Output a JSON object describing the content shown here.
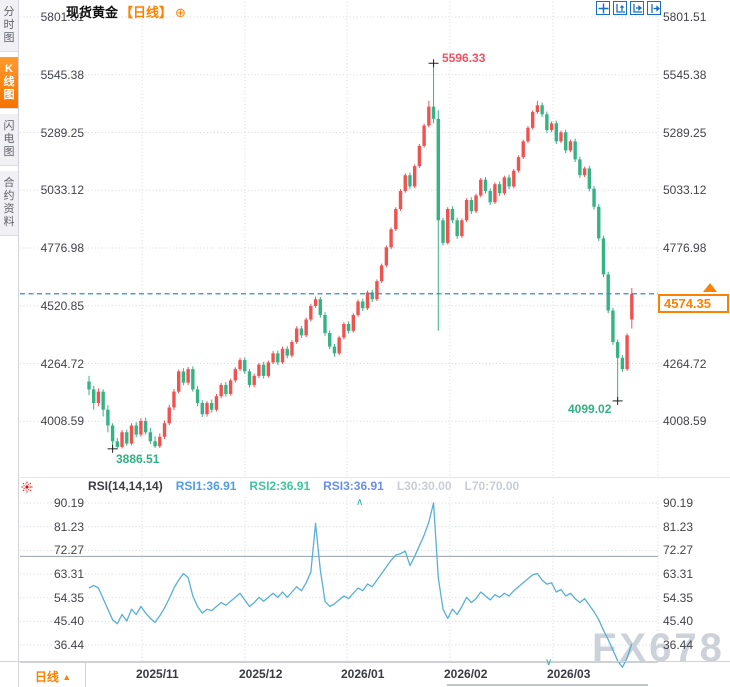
{
  "header": {
    "title": "现货黄金",
    "period_tag": "【日线】",
    "add_icon": "⊕"
  },
  "toolbar": {
    "icons": [
      "crosshair-icon",
      "axis-zoom-up-icon",
      "axis-play-icon",
      "shift-right-icon"
    ]
  },
  "sidebar": {
    "tabs": [
      {
        "label": "分时图",
        "active": false
      },
      {
        "label": "K线图",
        "active": true
      },
      {
        "label": "闪电图",
        "active": false
      },
      {
        "label": "合约资料",
        "active": false
      }
    ]
  },
  "annotations": {
    "high": "5596.33",
    "low1": "3886.51",
    "low2": "4099.02",
    "current_price": "4574.35"
  },
  "rsi_header": {
    "items": [
      {
        "text": "RSI(14,14,14)",
        "color": "#3c3c46"
      },
      {
        "text": "RSI1:36.91",
        "color": "#4f9ce8"
      },
      {
        "text": "RSI2:36.91",
        "color": "#3fc6a0"
      },
      {
        "text": "RSI3:36.91",
        "color": "#6a8fe8"
      },
      {
        "text": "L30:30.00",
        "color": "#c9cdd6"
      },
      {
        "text": "L70:70.00",
        "color": "#c9cdd6"
      }
    ]
  },
  "bottom_bar": {
    "period_label": "日线",
    "arrow": "▲"
  },
  "watermark": "FX678",
  "colors": {
    "accent_orange": "#fb8200",
    "up_red": "#ef5350",
    "down_green": "#35b384",
    "annotation_red": "#ef5364",
    "annotation_green": "#2fb184",
    "price_line_blue": "#2e86e8",
    "rsi_line": "#58b0d8",
    "toolbar_blue": "#1a6fc4",
    "grid": "#d4d8df",
    "level_line": "#9aa0a8",
    "watermark_gray": "#cdd2da"
  },
  "chart_data": {
    "type": "candlestick+rsi",
    "instrument": "现货黄金",
    "period": "日线",
    "x_labels": [
      "2025/11",
      "2025/12",
      "2026/01",
      "2026/02",
      "2026/03"
    ],
    "price_panel": {
      "type": "candlestick",
      "ylim": [
        3886.51,
        5801.51
      ],
      "y_ticks": [
        {
          "v": 5801.51,
          "t": "5801.51"
        },
        {
          "v": 5545.38,
          "t": "5545.38"
        },
        {
          "v": 5289.25,
          "t": "5289.25"
        },
        {
          "v": 5033.12,
          "t": "5033.12"
        },
        {
          "v": 4776.98,
          "t": "4776.98"
        },
        {
          "v": 4520.85,
          "t": "4520.85"
        },
        {
          "v": 4264.72,
          "t": "4264.72"
        },
        {
          "v": 4008.59,
          "t": "4008.59"
        }
      ],
      "last_price": 4574.35,
      "markers": [
        {
          "type": "high",
          "value": 5596.33,
          "candle": 73,
          "label": "5596.33",
          "label_pos": "top-right"
        },
        {
          "type": "low",
          "value": 3886.51,
          "candle": 5,
          "label": "3886.51",
          "label_pos": "bottom-right"
        },
        {
          "type": "low",
          "value": 4099.02,
          "candle": 112,
          "label": "4099.02",
          "label_pos": "left"
        }
      ],
      "ohlc": [
        [
          4185,
          4210,
          4125,
          4150
        ],
        [
          4150,
          4165,
          4060,
          4090
        ],
        [
          4090,
          4155,
          4075,
          4140
        ],
        [
          4140,
          4150,
          4030,
          4060
        ],
        [
          4060,
          4080,
          3960,
          3990
        ],
        [
          3990,
          4000,
          3887,
          3920
        ],
        [
          3920,
          3935,
          3889,
          3895
        ],
        [
          3895,
          3970,
          3888,
          3960
        ],
        [
          3960,
          3972,
          3900,
          3910
        ],
        [
          3910,
          4000,
          3902,
          3990
        ],
        [
          3990,
          4005,
          3938,
          3950
        ],
        [
          3950,
          4022,
          3940,
          4010
        ],
        [
          4010,
          4025,
          3950,
          3960
        ],
        [
          3960,
          3980,
          3908,
          3920
        ],
        [
          3920,
          3942,
          3890,
          3898
        ],
        [
          3898,
          3955,
          3890,
          3940
        ],
        [
          3940,
          4012,
          3930,
          4000
        ],
        [
          4000,
          4082,
          3992,
          4070
        ],
        [
          4070,
          4152,
          4058,
          4140
        ],
        [
          4140,
          4238,
          4132,
          4230
        ],
        [
          4230,
          4244,
          4168,
          4180
        ],
        [
          4180,
          4250,
          4170,
          4240
        ],
        [
          4240,
          4252,
          4140,
          4150
        ],
        [
          4150,
          4165,
          4075,
          4090
        ],
        [
          4090,
          4102,
          4028,
          4040
        ],
        [
          4040,
          4098,
          4030,
          4090
        ],
        [
          4090,
          4105,
          4048,
          4060
        ],
        [
          4060,
          4130,
          4052,
          4120
        ],
        [
          4120,
          4178,
          4110,
          4170
        ],
        [
          4170,
          4182,
          4118,
          4130
        ],
        [
          4130,
          4198,
          4122,
          4190
        ],
        [
          4190,
          4248,
          4180,
          4240
        ],
        [
          4240,
          4290,
          4232,
          4280
        ],
        [
          4280,
          4292,
          4218,
          4230
        ],
        [
          4230,
          4240,
          4158,
          4170
        ],
        [
          4170,
          4220,
          4160,
          4210
        ],
        [
          4210,
          4268,
          4200,
          4260
        ],
        [
          4260,
          4272,
          4198,
          4210
        ],
        [
          4210,
          4278,
          4202,
          4270
        ],
        [
          4270,
          4320,
          4262,
          4310
        ],
        [
          4310,
          4322,
          4258,
          4270
        ],
        [
          4270,
          4340,
          4262,
          4330
        ],
        [
          4330,
          4342,
          4288,
          4300
        ],
        [
          4300,
          4368,
          4292,
          4360
        ],
        [
          4360,
          4430,
          4352,
          4420
        ],
        [
          4420,
          4432,
          4378,
          4390
        ],
        [
          4390,
          4468,
          4382,
          4460
        ],
        [
          4460,
          4530,
          4452,
          4520
        ],
        [
          4520,
          4562,
          4512,
          4550
        ],
        [
          4550,
          4560,
          4468,
          4480
        ],
        [
          4480,
          4492,
          4388,
          4400
        ],
        [
          4400,
          4412,
          4328,
          4340
        ],
        [
          4340,
          4352,
          4295,
          4310
        ],
        [
          4310,
          4388,
          4302,
          4380
        ],
        [
          4380,
          4448,
          4372,
          4440
        ],
        [
          4440,
          4452,
          4398,
          4410
        ],
        [
          4410,
          4488,
          4402,
          4480
        ],
        [
          4480,
          4548,
          4472,
          4540
        ],
        [
          4540,
          4552,
          4498,
          4510
        ],
        [
          4510,
          4588,
          4502,
          4580
        ],
        [
          4580,
          4592,
          4538,
          4550
        ],
        [
          4550,
          4638,
          4542,
          4630
        ],
        [
          4630,
          4708,
          4622,
          4700
        ],
        [
          4700,
          4788,
          4692,
          4780
        ],
        [
          4780,
          4868,
          4772,
          4860
        ],
        [
          4860,
          4958,
          4852,
          4950
        ],
        [
          4950,
          5038,
          4942,
          5030
        ],
        [
          5030,
          5108,
          5022,
          5100
        ],
        [
          5100,
          5112,
          5038,
          5050
        ],
        [
          5050,
          5148,
          5042,
          5140
        ],
        [
          5140,
          5238,
          5132,
          5230
        ],
        [
          5230,
          5328,
          5222,
          5320
        ],
        [
          5320,
          5430,
          5312,
          5404
        ],
        [
          5404,
          5596,
          5330,
          5350
        ],
        [
          5350,
          5388,
          4410,
          4900
        ],
        [
          4900,
          4912,
          4788,
          4800
        ],
        [
          4800,
          4958,
          4792,
          4950
        ],
        [
          4950,
          4962,
          4888,
          4900
        ],
        [
          4900,
          4912,
          4818,
          4830
        ],
        [
          4830,
          4908,
          4822,
          4900
        ],
        [
          4900,
          4998,
          4892,
          4990
        ],
        [
          4990,
          5002,
          4928,
          4940
        ],
        [
          4940,
          5018,
          4932,
          5010
        ],
        [
          5010,
          5088,
          5002,
          5080
        ],
        [
          5080,
          5092,
          5018,
          5030
        ],
        [
          5030,
          5042,
          4968,
          4980
        ],
        [
          4980,
          5068,
          4972,
          5060
        ],
        [
          5060,
          5072,
          5008,
          5020
        ],
        [
          5020,
          5098,
          5012,
          5090
        ],
        [
          5090,
          5102,
          5038,
          5050
        ],
        [
          5050,
          5128,
          5042,
          5120
        ],
        [
          5120,
          5188,
          5112,
          5180
        ],
        [
          5180,
          5258,
          5172,
          5250
        ],
        [
          5250,
          5318,
          5242,
          5310
        ],
        [
          5310,
          5388,
          5302,
          5380
        ],
        [
          5380,
          5430,
          5372,
          5410
        ],
        [
          5410,
          5422,
          5358,
          5370
        ],
        [
          5370,
          5382,
          5288,
          5300
        ],
        [
          5300,
          5338,
          5292,
          5330
        ],
        [
          5330,
          5342,
          5238,
          5250
        ],
        [
          5250,
          5298,
          5242,
          5290
        ],
        [
          5290,
          5302,
          5198,
          5210
        ],
        [
          5210,
          5258,
          5202,
          5250
        ],
        [
          5250,
          5262,
          5158,
          5170
        ],
        [
          5170,
          5182,
          5088,
          5100
        ],
        [
          5100,
          5138,
          5092,
          5130
        ],
        [
          5130,
          5142,
          5028,
          5040
        ],
        [
          5040,
          5052,
          4948,
          4960
        ],
        [
          4960,
          4972,
          4808,
          4820
        ],
        [
          4820,
          4832,
          4648,
          4660
        ],
        [
          4660,
          4672,
          4488,
          4500
        ],
        [
          4500,
          4512,
          4348,
          4360
        ],
        [
          4360,
          4372,
          4099,
          4290
        ],
        [
          4290,
          4302,
          4228,
          4240
        ],
        [
          4240,
          4398,
          4232,
          4390
        ],
        [
          4460,
          4600,
          4420,
          4574
        ]
      ]
    },
    "rsi_panel": {
      "type": "line",
      "params": "RSI(14,14,14)",
      "rsi1": 36.91,
      "rsi2": 36.91,
      "rsi3": 36.91,
      "levels": [
        30,
        70
      ],
      "ylim": [
        28,
        90.19
      ],
      "y_ticks": [
        {
          "v": 90.19,
          "t": "90.19"
        },
        {
          "v": 81.23,
          "t": "81.23"
        },
        {
          "v": 72.27,
          "t": "72.27"
        },
        {
          "v": 63.31,
          "t": "63.31"
        },
        {
          "v": 54.35,
          "t": "54.35"
        },
        {
          "v": 45.4,
          "t": "45.40"
        },
        {
          "v": 36.44,
          "t": "36.44"
        }
      ],
      "values": [
        58,
        59,
        58,
        54,
        50,
        46,
        44.5,
        48,
        45.5,
        50,
        48,
        51,
        48.5,
        46.5,
        45,
        47.5,
        50.5,
        54,
        58,
        61,
        63.5,
        62,
        55,
        51,
        48.5,
        50,
        49.5,
        51,
        52.5,
        51.5,
        53,
        54.5,
        56,
        53.5,
        51,
        52.5,
        54.5,
        53,
        54.5,
        56,
        54.5,
        56.5,
        54.5,
        56.5,
        58.5,
        57,
        60,
        64,
        82.5,
        65,
        53,
        51,
        52,
        53.5,
        55,
        54,
        56,
        58,
        57,
        59.5,
        58.5,
        61,
        63.5,
        66,
        68.5,
        70.5,
        71,
        72,
        66.5,
        70,
        74,
        78,
        83,
        90.2,
        62,
        50,
        46.5,
        50,
        48,
        51,
        54.5,
        52.5,
        54,
        56.5,
        55,
        53.5,
        55.5,
        54.5,
        56,
        55,
        57,
        58.5,
        60,
        61.5,
        63,
        63.5,
        61,
        59.5,
        60,
        56.5,
        57.5,
        55,
        56,
        54,
        52.5,
        54,
        51.5,
        49,
        46,
        42,
        38.5,
        34.5,
        30.5,
        28,
        31.5,
        36.91
      ]
    }
  }
}
